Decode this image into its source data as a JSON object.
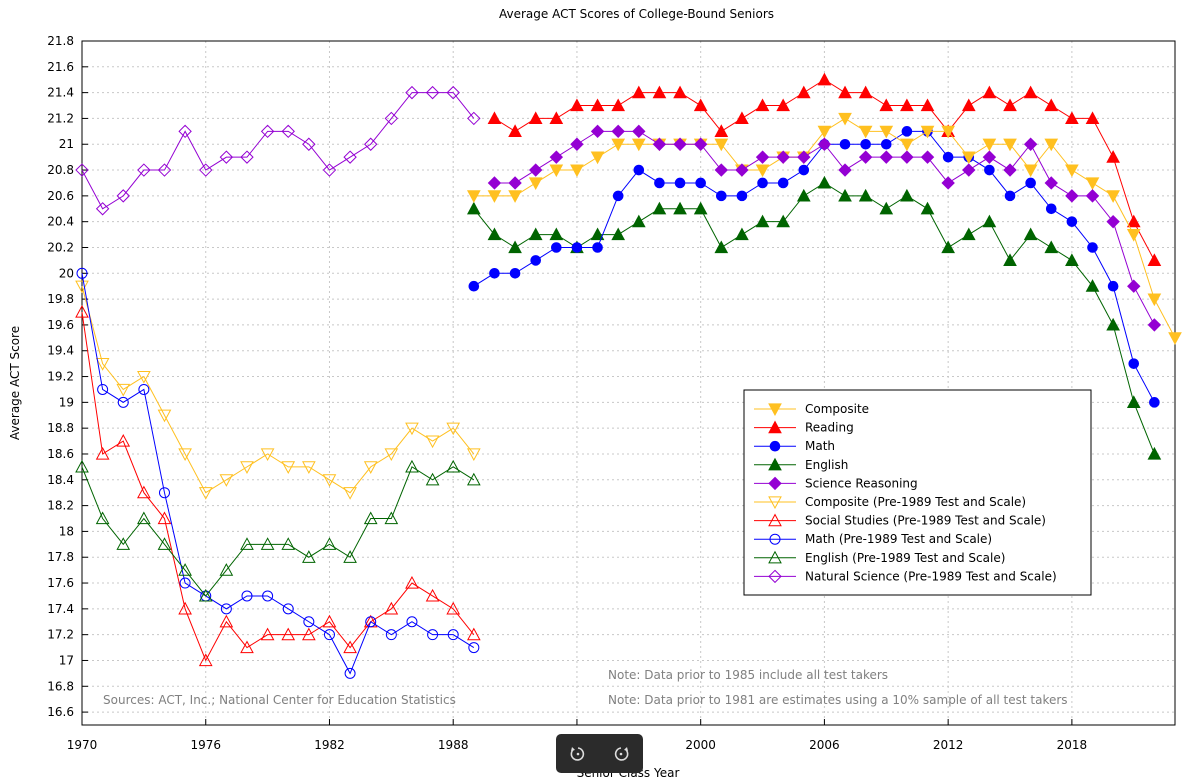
{
  "toolbar": {
    "rotate_left_icon": "rotate-ccw-icon",
    "rotate_right_icon": "rotate-cw-icon"
  },
  "chart_data": {
    "type": "line",
    "title": "Average ACT Scores of College-Bound Seniors",
    "xlabel": "Senior Class Year",
    "ylabel": "Average ACT Score",
    "xlim": [
      1970,
      2023
    ],
    "ylim": [
      16.5,
      21.8
    ],
    "xticks": [
      1970,
      1976,
      1982,
      1988,
      1994,
      2000,
      2006,
      2012,
      2018
    ],
    "yticks": [
      16.6,
      16.8,
      17,
      17.2,
      17.4,
      17.6,
      17.8,
      18,
      18.2,
      18.4,
      18.6,
      18.8,
      19,
      19.2,
      19.4,
      19.6,
      19.8,
      20,
      20.2,
      20.4,
      20.6,
      20.8,
      21,
      21.2,
      21.4,
      21.6,
      21.8
    ],
    "grid": true,
    "legend_position": "right",
    "annotations": [
      "Sources: ACT, Inc.; National Center for Education Statistics",
      "Note: Data prior to 1985 include all test takers",
      "Note: Data prior to 1981 are estimates using a 10% sample of all test takers"
    ],
    "series": [
      {
        "name": "Composite",
        "color": "#ffc020",
        "marker": "triangle-down",
        "filled": true,
        "x_start": 1989,
        "values": [
          20.6,
          20.6,
          20.6,
          20.7,
          20.8,
          20.8,
          20.9,
          21.0,
          21.0,
          21.0,
          21.0,
          21.0,
          21.0,
          20.8,
          20.8,
          20.9,
          20.9,
          21.1,
          21.2,
          21.1,
          21.1,
          21.0,
          21.1,
          21.1,
          20.9,
          21.0,
          21.0,
          20.8,
          21.0,
          20.8,
          20.7,
          20.6,
          20.3,
          19.8,
          19.5
        ]
      },
      {
        "name": "Reading",
        "color": "#ff0000",
        "marker": "triangle-up",
        "filled": true,
        "x_start": 1990,
        "values": [
          21.2,
          21.1,
          21.2,
          21.2,
          21.3,
          21.3,
          21.3,
          21.4,
          21.4,
          21.4,
          21.3,
          21.1,
          21.2,
          21.3,
          21.3,
          21.4,
          21.5,
          21.4,
          21.4,
          21.3,
          21.3,
          21.3,
          21.1,
          21.3,
          21.4,
          21.3,
          21.4,
          21.3,
          21.2,
          21.2,
          20.9,
          20.4,
          20.1
        ]
      },
      {
        "name": "Math",
        "color": "#0000ff",
        "marker": "circle",
        "filled": true,
        "x_start": 1989,
        "values": [
          19.9,
          20.0,
          20.0,
          20.1,
          20.2,
          20.2,
          20.2,
          20.6,
          20.8,
          20.7,
          20.7,
          20.7,
          20.6,
          20.6,
          20.7,
          20.7,
          20.8,
          21.0,
          21.0,
          21.0,
          21.0,
          21.1,
          21.1,
          20.9,
          20.9,
          20.8,
          20.6,
          20.7,
          20.5,
          20.4,
          20.2,
          19.9,
          19.3,
          19.0
        ]
      },
      {
        "name": "English",
        "color": "#006400",
        "marker": "triangle-up",
        "filled": true,
        "x_start": 1989,
        "values": [
          20.5,
          20.3,
          20.2,
          20.3,
          20.3,
          20.2,
          20.3,
          20.3,
          20.4,
          20.5,
          20.5,
          20.5,
          20.2,
          20.3,
          20.4,
          20.4,
          20.6,
          20.7,
          20.6,
          20.6,
          20.5,
          20.6,
          20.5,
          20.2,
          20.3,
          20.4,
          20.1,
          20.3,
          20.2,
          20.1,
          19.9,
          19.6,
          19.0,
          18.6
        ]
      },
      {
        "name": "Science Reasoning",
        "color": "#9400d3",
        "marker": "diamond",
        "filled": true,
        "x_start": 1990,
        "values": [
          20.7,
          20.7,
          20.8,
          20.9,
          21.0,
          21.1,
          21.1,
          21.1,
          21.0,
          21.0,
          21.0,
          20.8,
          20.8,
          20.9,
          20.9,
          20.9,
          21.0,
          20.8,
          20.9,
          20.9,
          20.9,
          20.9,
          20.7,
          20.8,
          20.9,
          20.8,
          21.0,
          20.7,
          20.6,
          20.6,
          20.4,
          19.9,
          19.6
        ]
      },
      {
        "name": "Composite (Pre-1989 Test and Scale)",
        "color": "#ffc020",
        "marker": "triangle-down",
        "filled": false,
        "x_start": 1970,
        "values": [
          19.9,
          19.3,
          19.1,
          19.2,
          18.9,
          18.6,
          18.3,
          18.4,
          18.5,
          18.6,
          18.5,
          18.5,
          18.4,
          18.3,
          18.5,
          18.6,
          18.8,
          18.7,
          18.8,
          18.6
        ]
      },
      {
        "name": "Social Studies (Pre-1989 Test and Scale)",
        "color": "#ff0000",
        "marker": "triangle-up",
        "filled": false,
        "x_start": 1970,
        "values": [
          19.7,
          18.6,
          18.7,
          18.3,
          18.1,
          17.4,
          17.0,
          17.3,
          17.1,
          17.2,
          17.2,
          17.2,
          17.3,
          17.1,
          17.3,
          17.4,
          17.6,
          17.5,
          17.4,
          17.2
        ]
      },
      {
        "name": "Math (Pre-1989 Test and Scale)",
        "color": "#0000ff",
        "marker": "circle",
        "filled": false,
        "x_start": 1970,
        "values": [
          20.0,
          19.1,
          19.0,
          19.1,
          18.3,
          17.6,
          17.5,
          17.4,
          17.5,
          17.5,
          17.4,
          17.3,
          17.2,
          16.9,
          17.3,
          17.2,
          17.3,
          17.2,
          17.2,
          17.1
        ]
      },
      {
        "name": "English (Pre-1989 Test and Scale)",
        "color": "#006400",
        "marker": "triangle-up",
        "filled": false,
        "x_start": 1970,
        "values": [
          18.5,
          18.1,
          17.9,
          18.1,
          17.9,
          17.7,
          17.5,
          17.7,
          17.9,
          17.9,
          17.9,
          17.8,
          17.9,
          17.8,
          18.1,
          18.1,
          18.5,
          18.4,
          18.5,
          18.4
        ]
      },
      {
        "name": "Natural Science (Pre-1989 Test and Scale)",
        "color": "#9400d3",
        "marker": "diamond",
        "filled": false,
        "x_start": 1970,
        "values": [
          20.8,
          20.5,
          20.6,
          20.8,
          20.8,
          21.1,
          20.8,
          20.9,
          20.9,
          21.1,
          21.1,
          21.0,
          20.8,
          20.9,
          21.0,
          21.2,
          21.4,
          21.4,
          21.4,
          21.2
        ]
      }
    ]
  }
}
